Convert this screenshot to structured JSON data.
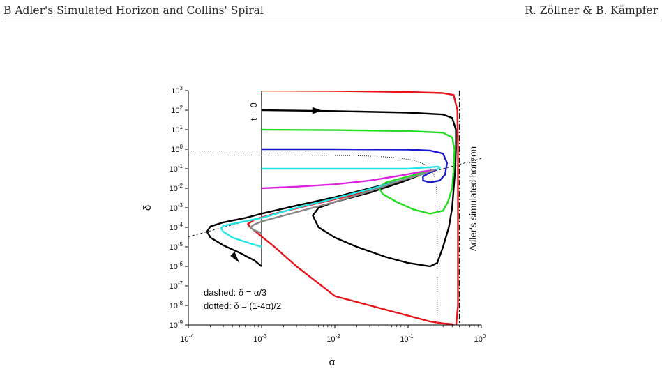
{
  "header": {
    "left": "B   Adler's Simulated Horizon and Collins' Spiral",
    "right": "R. Zöllner & B. Kämpfer"
  },
  "chart_data": {
    "type": "line",
    "xlabel": "α",
    "ylabel": "δ",
    "xscale": "log",
    "yscale": "log",
    "xlim": [
      0.0001,
      1
    ],
    "ylim": [
      1e-09,
      1000
    ],
    "x_ticks": [
      {
        "base": "10",
        "exp": "-4"
      },
      {
        "base": "10",
        "exp": "-3"
      },
      {
        "base": "10",
        "exp": "-2"
      },
      {
        "base": "10",
        "exp": "-1"
      },
      {
        "base": "10",
        "exp": "0"
      }
    ],
    "y_ticks": [
      {
        "base": "10",
        "exp": "-9"
      },
      {
        "base": "10",
        "exp": "-8"
      },
      {
        "base": "10",
        "exp": "-7"
      },
      {
        "base": "10",
        "exp": "-6"
      },
      {
        "base": "10",
        "exp": "-5"
      },
      {
        "base": "10",
        "exp": "-4"
      },
      {
        "base": "10",
        "exp": "-3"
      },
      {
        "base": "10",
        "exp": "-2"
      },
      {
        "base": "10",
        "exp": "-1"
      },
      {
        "base": "10",
        "exp": "0"
      },
      {
        "base": "10",
        "exp": "1"
      },
      {
        "base": "10",
        "exp": "2"
      },
      {
        "base": "10",
        "exp": "3"
      }
    ],
    "annotations": {
      "t0": "t = 0",
      "horizon": "Adler's simulated horizon",
      "dashed_label": "dashed:  δ = α/3",
      "dotted_label": "dotted:    δ = (1-4α)/2"
    },
    "horizon_alpha": 0.5,
    "series": [
      {
        "color": "#e8141c",
        "points": [
          [
            0.001,
            1000
          ],
          [
            0.01,
            950
          ],
          [
            0.1,
            850
          ],
          [
            0.3,
            750
          ],
          [
            0.42,
            600
          ],
          [
            0.47,
            100
          ],
          [
            0.48,
            1
          ],
          [
            0.48,
            0.01
          ],
          [
            0.48,
            1e-05
          ],
          [
            0.48,
            1e-08
          ],
          [
            0.45,
            8e-10
          ],
          [
            0.4,
            1.1e-09
          ],
          [
            0.3,
            1.2e-09
          ],
          [
            0.2,
            1.5e-09
          ],
          [
            0.1,
            3e-09
          ],
          [
            0.03,
            1e-08
          ],
          [
            0.01,
            3e-08
          ],
          [
            0.003,
            1e-06
          ],
          [
            0.0015,
            1e-05
          ],
          [
            0.0007,
            0.0001
          ],
          [
            0.00065,
            0.00015
          ],
          [
            0.0008,
            0.00025
          ],
          [
            0.0015,
            0.0005
          ],
          [
            0.005,
            0.0015
          ],
          [
            0.02,
            0.005
          ],
          [
            0.07,
            0.02
          ],
          [
            0.15,
            0.05
          ],
          [
            0.22,
            0.08
          ],
          [
            0.24,
            0.09
          ]
        ]
      },
      {
        "color": "#000000",
        "points": [
          [
            0.001,
            100
          ],
          [
            0.01,
            90
          ],
          [
            0.1,
            75
          ],
          [
            0.3,
            60
          ],
          [
            0.4,
            40
          ],
          [
            0.45,
            10
          ],
          [
            0.45,
            1
          ],
          [
            0.44,
            0.1
          ],
          [
            0.42,
            0.01
          ],
          [
            0.4,
            0.001
          ],
          [
            0.36,
            0.0001
          ],
          [
            0.3,
            1e-05
          ],
          [
            0.25,
            1.5e-06
          ],
          [
            0.2,
            1e-06
          ],
          [
            0.1,
            1.5e-06
          ],
          [
            0.05,
            3e-06
          ],
          [
            0.02,
            1e-05
          ],
          [
            0.01,
            3e-05
          ],
          [
            0.006,
            0.0001
          ],
          [
            0.005,
            0.0004
          ],
          [
            0.006,
            0.001
          ],
          [
            0.01,
            0.002
          ],
          [
            0.03,
            0.006
          ],
          [
            0.08,
            0.02
          ],
          [
            0.15,
            0.05
          ],
          [
            0.22,
            0.08
          ],
          [
            0.24,
            0.09
          ]
        ]
      },
      {
        "color": "#000000",
        "points": [
          [
            0.001,
            1e-06
          ],
          [
            0.0008,
            2e-06
          ],
          [
            0.0005,
            5e-06
          ],
          [
            0.0003,
            1.2e-05
          ],
          [
            0.0002,
            3e-05
          ],
          [
            0.00018,
            6e-05
          ],
          [
            0.0002,
            0.00011
          ],
          [
            0.0003,
            0.00018
          ],
          [
            0.0006,
            0.0003
          ],
          [
            0.001,
            0.0005
          ],
          [
            0.003,
            0.0013
          ],
          [
            0.01,
            0.0035
          ],
          [
            0.03,
            0.01
          ],
          [
            0.08,
            0.025
          ],
          [
            0.15,
            0.05
          ],
          [
            0.22,
            0.08
          ],
          [
            0.24,
            0.09
          ]
        ]
      },
      {
        "color": "#22dd22",
        "points": [
          [
            0.001,
            10
          ],
          [
            0.01,
            9.5
          ],
          [
            0.1,
            8.5
          ],
          [
            0.3,
            7
          ],
          [
            0.4,
            4
          ],
          [
            0.43,
            1
          ],
          [
            0.42,
            0.1
          ],
          [
            0.4,
            0.01
          ],
          [
            0.35,
            0.002
          ],
          [
            0.3,
            0.0007
          ],
          [
            0.2,
            0.0005
          ],
          [
            0.12,
            0.0008
          ],
          [
            0.07,
            0.002
          ],
          [
            0.045,
            0.005
          ],
          [
            0.04,
            0.011
          ],
          [
            0.05,
            0.02
          ],
          [
            0.1,
            0.04
          ],
          [
            0.18,
            0.07
          ],
          [
            0.23,
            0.09
          ]
        ]
      },
      {
        "color": "#1a1acc",
        "points": [
          [
            0.001,
            1
          ],
          [
            0.01,
            1
          ],
          [
            0.1,
            0.95
          ],
          [
            0.2,
            0.85
          ],
          [
            0.3,
            0.6
          ],
          [
            0.34,
            0.2
          ],
          [
            0.32,
            0.05
          ],
          [
            0.27,
            0.025
          ],
          [
            0.2,
            0.02
          ],
          [
            0.16,
            0.025
          ],
          [
            0.16,
            0.04
          ],
          [
            0.2,
            0.065
          ],
          [
            0.23,
            0.08
          ],
          [
            0.24,
            0.09
          ]
        ]
      },
      {
        "color": "#22e5e5",
        "points": [
          [
            0.001,
            0.1
          ],
          [
            0.01,
            0.1
          ],
          [
            0.1,
            0.1
          ],
          [
            0.2,
            0.12
          ],
          [
            0.26,
            0.13
          ],
          [
            0.27,
            0.11
          ],
          [
            0.25,
            0.095
          ],
          [
            0.24,
            0.09
          ]
        ]
      },
      {
        "color": "#22e5e5",
        "points": [
          [
            0.001,
            1e-05
          ],
          [
            0.0007,
            1.5e-05
          ],
          [
            0.0004,
            3e-05
          ],
          [
            0.0003,
            6e-05
          ],
          [
            0.00028,
            9e-05
          ],
          [
            0.0003,
            0.00012
          ],
          [
            0.0005,
            0.00018
          ],
          [
            0.001,
            0.0003
          ],
          [
            0.003,
            0.001
          ],
          [
            0.01,
            0.003
          ],
          [
            0.03,
            0.009
          ],
          [
            0.08,
            0.025
          ],
          [
            0.15,
            0.05
          ],
          [
            0.23,
            0.09
          ]
        ]
      },
      {
        "color": "#dd22dd",
        "points": [
          [
            0.001,
            0.01
          ],
          [
            0.003,
            0.012
          ],
          [
            0.01,
            0.016
          ],
          [
            0.03,
            0.025
          ],
          [
            0.08,
            0.045
          ],
          [
            0.15,
            0.07
          ],
          [
            0.22,
            0.085
          ],
          [
            0.24,
            0.09
          ]
        ]
      },
      {
        "color": "#888888",
        "points": [
          [
            0.001,
            5e-05
          ],
          [
            0.0008,
            7e-05
          ],
          [
            0.0007,
            0.0001
          ],
          [
            0.0008,
            0.00014
          ],
          [
            0.001,
            0.0002
          ],
          [
            0.003,
            0.0006
          ],
          [
            0.01,
            0.002
          ],
          [
            0.03,
            0.007
          ],
          [
            0.08,
            0.025
          ],
          [
            0.15,
            0.05
          ],
          [
            0.23,
            0.09
          ]
        ]
      }
    ]
  }
}
